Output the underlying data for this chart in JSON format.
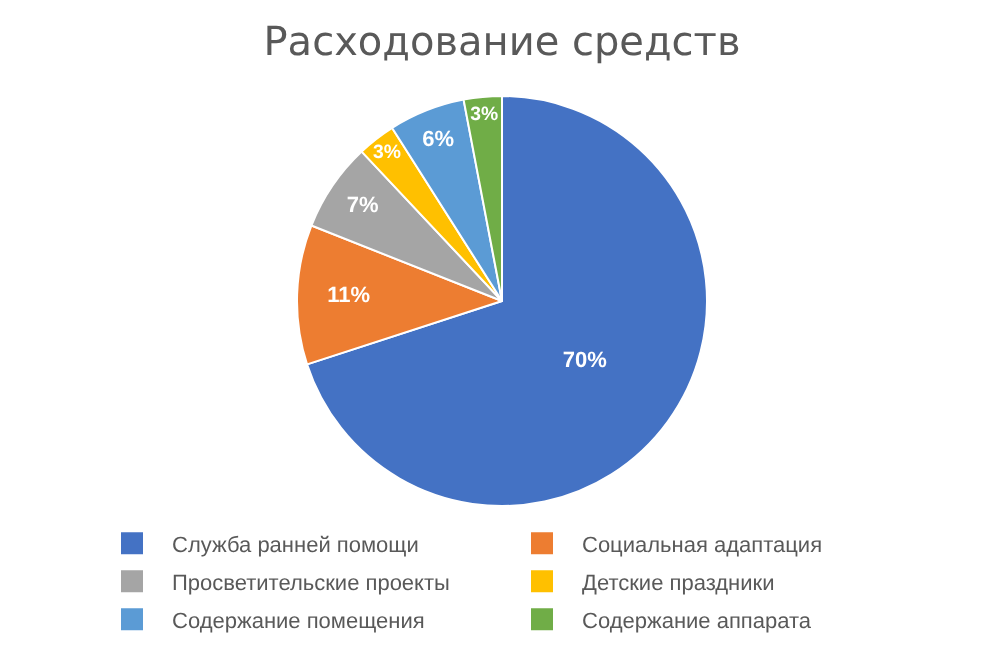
{
  "chart_data": {
    "type": "pie",
    "title": "Расходование средств",
    "categories": [
      "Служба ранней помощи",
      "Социальная адаптация",
      "Просветительские проекты",
      "Детские праздники",
      "Содержание помещения",
      "Содержание аппарата"
    ],
    "values": [
      70,
      11,
      7,
      3,
      6,
      3
    ],
    "colors": [
      "#4472c4",
      "#ed7d31",
      "#a5a5a5",
      "#ffc000",
      "#5b9bd5",
      "#70ad47"
    ],
    "value_labels": [
      "70%",
      "11%",
      "7%",
      "3%",
      "6%",
      "3%"
    ],
    "legend": "bottom"
  }
}
